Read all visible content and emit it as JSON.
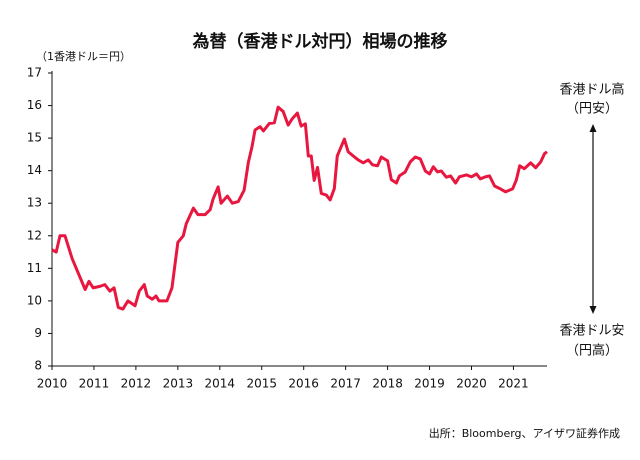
{
  "chart_data": {
    "type": "line",
    "title": "為替（香港ドル対円）相場の推移",
    "y_label": "（1香港ドル＝円）",
    "annotations": [
      "香港ドル高",
      "（円安）",
      "香港ドル安",
      "（円高）"
    ],
    "source": "出所：Bloomberg、アイザワ証券作成",
    "color": "#e8173f",
    "grid": false,
    "xlim": [
      2010,
      2021.8
    ],
    "xticks": [
      2010,
      2011,
      2012,
      2013,
      2014,
      2015,
      2016,
      2017,
      2018,
      2019,
      2020,
      2021
    ],
    "ylim": [
      8,
      17
    ],
    "yticks": [
      8,
      9,
      10,
      11,
      12,
      13,
      14,
      15,
      16,
      17
    ],
    "x": [
      2010.0,
      2010.1,
      2010.19,
      2010.31,
      2010.48,
      2010.79,
      2010.88,
      2010.98,
      2011.15,
      2011.26,
      2011.38,
      2011.48,
      2011.58,
      2011.69,
      2011.81,
      2011.98,
      2012.08,
      2012.2,
      2012.27,
      2012.39,
      2012.48,
      2012.55,
      2012.74,
      2012.86,
      2013.0,
      2013.13,
      2013.2,
      2013.37,
      2013.48,
      2013.65,
      2013.77,
      2013.84,
      2013.96,
      2014.03,
      2014.18,
      2014.3,
      2014.44,
      2014.58,
      2014.68,
      2014.77,
      2014.84,
      2014.96,
      2015.04,
      2015.18,
      2015.3,
      2015.39,
      2015.51,
      2015.63,
      2015.73,
      2015.85,
      2015.94,
      2016.04,
      2016.11,
      2016.18,
      2016.25,
      2016.33,
      2016.42,
      2016.54,
      2016.63,
      2016.73,
      2016.8,
      2016.97,
      2017.06,
      2017.21,
      2017.3,
      2017.42,
      2017.54,
      2017.64,
      2017.76,
      2017.85,
      2018.0,
      2018.09,
      2018.21,
      2018.28,
      2018.42,
      2018.54,
      2018.66,
      2018.78,
      2018.9,
      2019.0,
      2019.09,
      2019.19,
      2019.28,
      2019.4,
      2019.5,
      2019.62,
      2019.71,
      2019.88,
      2020.0,
      2020.12,
      2020.21,
      2020.33,
      2020.43,
      2020.55,
      2020.69,
      2020.81,
      2020.98,
      2021.07,
      2021.15,
      2021.26,
      2021.41,
      2021.53,
      2021.65,
      2021.74,
      2021.8
    ],
    "values": [
      11.57,
      11.5,
      12.0,
      12.0,
      11.3,
      10.35,
      10.6,
      10.4,
      10.45,
      10.5,
      10.3,
      10.4,
      9.8,
      9.75,
      10.0,
      9.85,
      10.3,
      10.5,
      10.15,
      10.05,
      10.15,
      10.0,
      10.0,
      10.4,
      11.8,
      12.0,
      12.37,
      12.85,
      12.65,
      12.65,
      12.8,
      13.13,
      13.5,
      13.0,
      13.22,
      13.0,
      13.05,
      13.4,
      14.25,
      14.75,
      15.25,
      15.35,
      15.22,
      15.45,
      15.47,
      15.95,
      15.82,
      15.4,
      15.6,
      15.77,
      15.37,
      15.44,
      14.45,
      14.45,
      13.7,
      14.1,
      13.3,
      13.25,
      13.1,
      13.45,
      14.45,
      14.97,
      14.58,
      14.42,
      14.33,
      14.24,
      14.33,
      14.18,
      14.15,
      14.42,
      14.3,
      13.72,
      13.62,
      13.84,
      13.96,
      14.27,
      14.42,
      14.36,
      13.99,
      13.9,
      14.12,
      13.96,
      13.99,
      13.8,
      13.84,
      13.62,
      13.81,
      13.87,
      13.81,
      13.9,
      13.75,
      13.81,
      13.84,
      13.53,
      13.44,
      13.35,
      13.44,
      13.72,
      14.15,
      14.06,
      14.24,
      14.09,
      14.27,
      14.52,
      14.58
    ]
  }
}
